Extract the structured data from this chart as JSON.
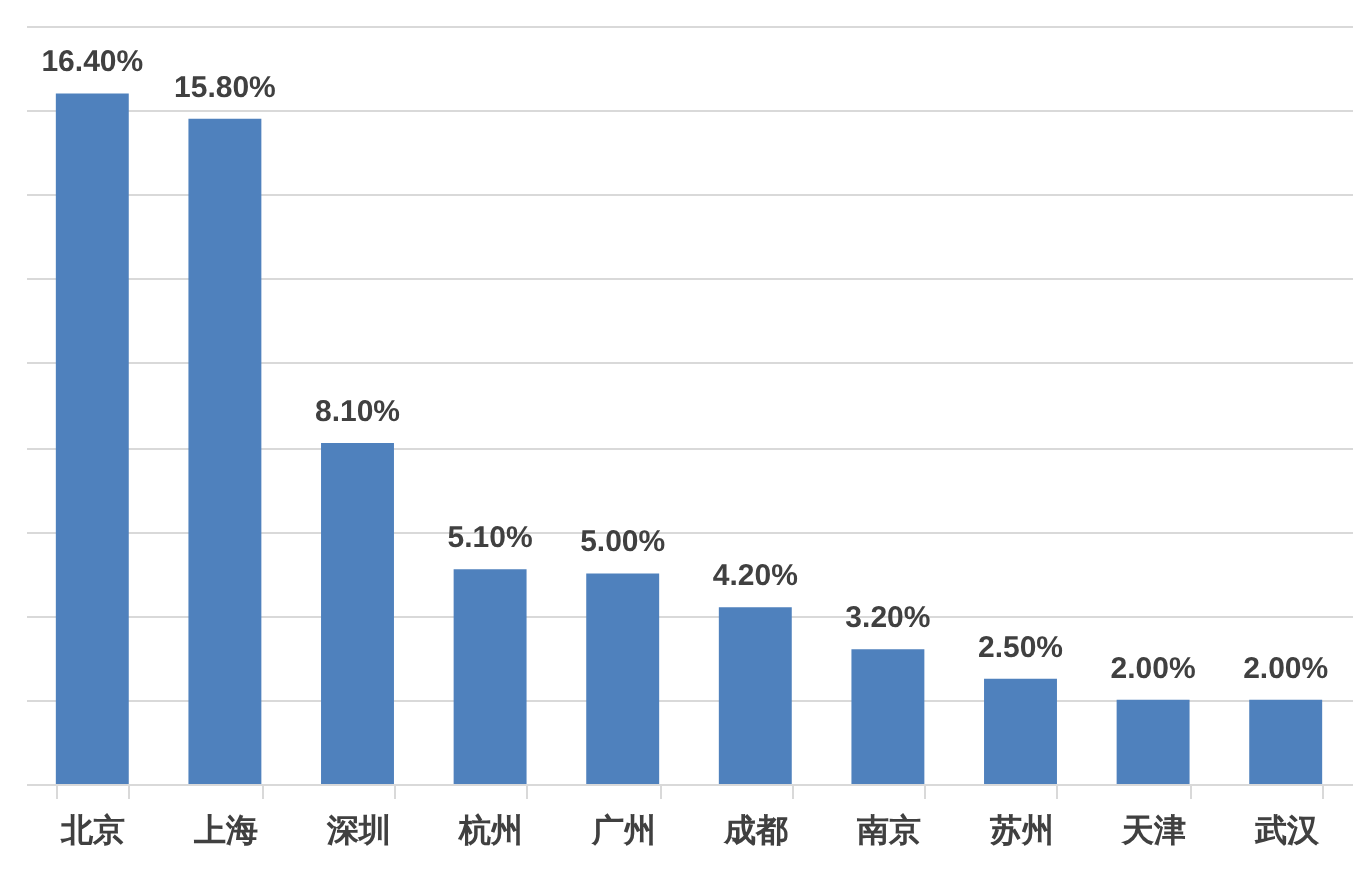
{
  "chart_data": {
    "type": "bar",
    "categories": [
      "北京",
      "上海",
      "深圳",
      "杭州",
      "广州",
      "成都",
      "南京",
      "苏州",
      "天津",
      "武汉"
    ],
    "values": [
      16.4,
      15.8,
      8.1,
      5.1,
      5.0,
      4.2,
      3.2,
      2.5,
      2.0,
      2.0
    ],
    "value_labels": [
      "16.40%",
      "15.80%",
      "8.10%",
      "5.10%",
      "5.00%",
      "4.20%",
      "3.20%",
      "2.50%",
      "2.00%",
      "2.00%"
    ],
    "color": "#4f81bd",
    "ylim": [
      0,
      18
    ],
    "yticks": [
      {
        "value": 0,
        "label": null
      },
      {
        "value": 2,
        "label": null
      },
      {
        "value": 4,
        "label": null
      },
      {
        "value": 6,
        "label": null
      },
      {
        "value": 8,
        "label": null
      },
      {
        "value": 10,
        "label": null
      },
      {
        "value": 12,
        "label": null
      },
      {
        "value": 14,
        "label": null
      },
      {
        "value": 16,
        "label": null
      },
      {
        "value": 18,
        "label": null
      }
    ],
    "grid": "y",
    "tick_labels": "x"
  }
}
